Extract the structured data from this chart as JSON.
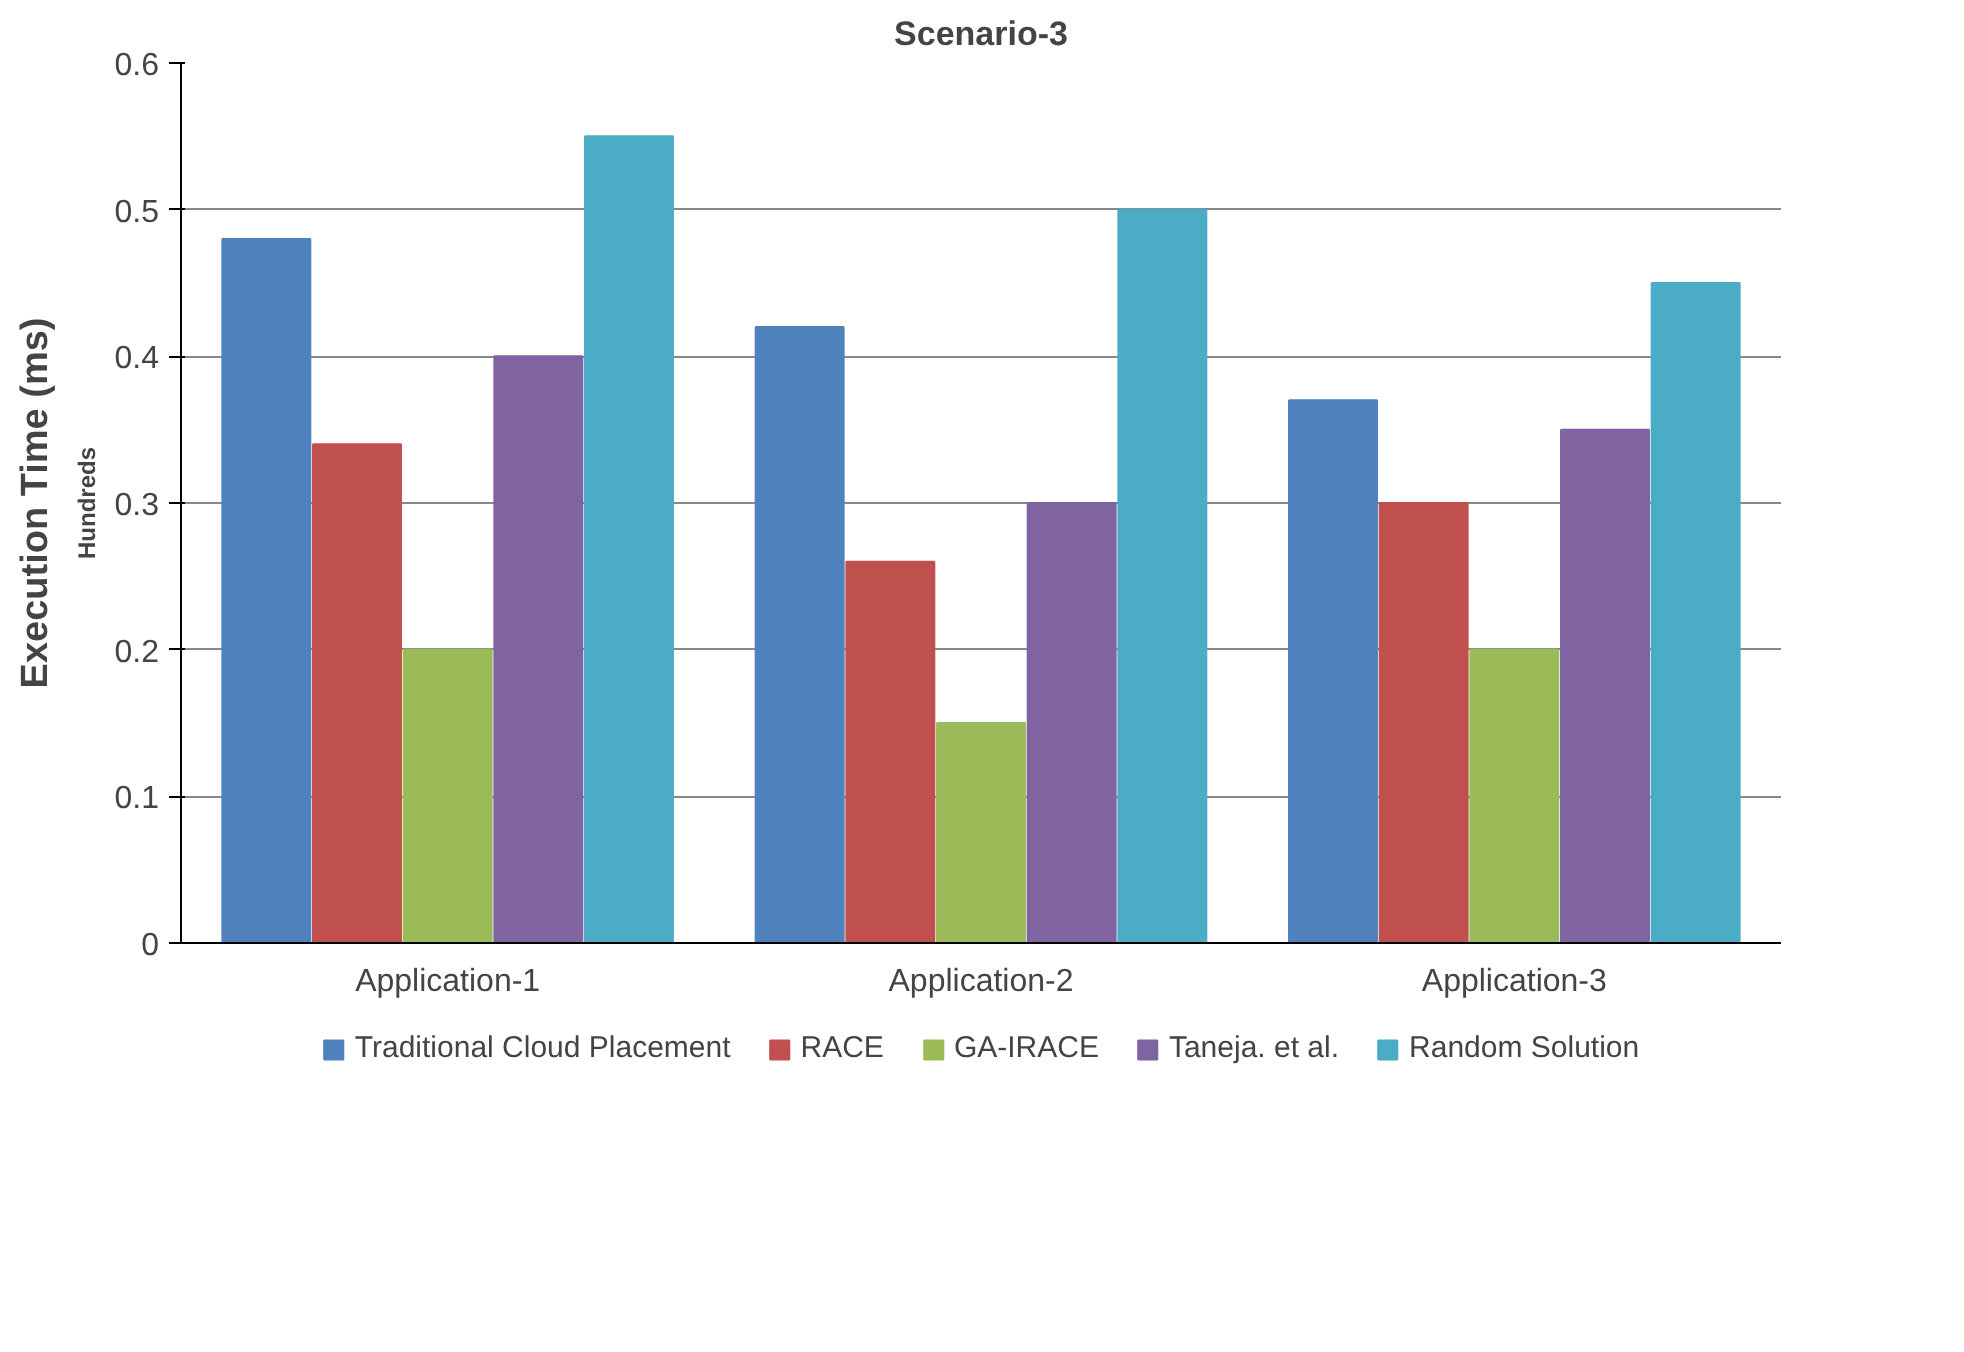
{
  "chart_data": {
    "type": "bar",
    "title": "Scenario-3",
    "ylabel": "Execution Time (ms)",
    "annotations": [
      "Hundreds"
    ],
    "categories": [
      "Application-1",
      "Application-2",
      "Application-3"
    ],
    "series": [
      {
        "name": "Traditional Cloud Placement",
        "color": "#4f81bd",
        "values": [
          0.48,
          0.42,
          0.37
        ]
      },
      {
        "name": "RACE",
        "color": "#c0504d",
        "values": [
          0.34,
          0.26,
          0.3
        ]
      },
      {
        "name": "GA-IRACE",
        "color": "#9bbb59",
        "values": [
          0.2,
          0.15,
          0.2
        ]
      },
      {
        "name": "Taneja. et al.",
        "color": "#8064a2",
        "values": [
          0.4,
          0.3,
          0.35
        ]
      },
      {
        "name": "Random Solution",
        "color": "#4bacc6",
        "values": [
          0.55,
          0.5,
          0.45
        ]
      }
    ],
    "ylim": [
      0,
      0.6
    ],
    "yticks": [
      0,
      {
        "value": 0.1,
        "label": "0.1"
      },
      {
        "value": 0.2,
        "label": "0.2"
      },
      {
        "value": 0.3,
        "label": "0.3"
      },
      {
        "value": 0.4,
        "label": "0.4"
      },
      {
        "value": 0.5,
        "label": "0.5"
      },
      {
        "value": 0.6,
        "label": "0.6"
      }
    ],
    "grid": "y",
    "legend": "bottom"
  }
}
